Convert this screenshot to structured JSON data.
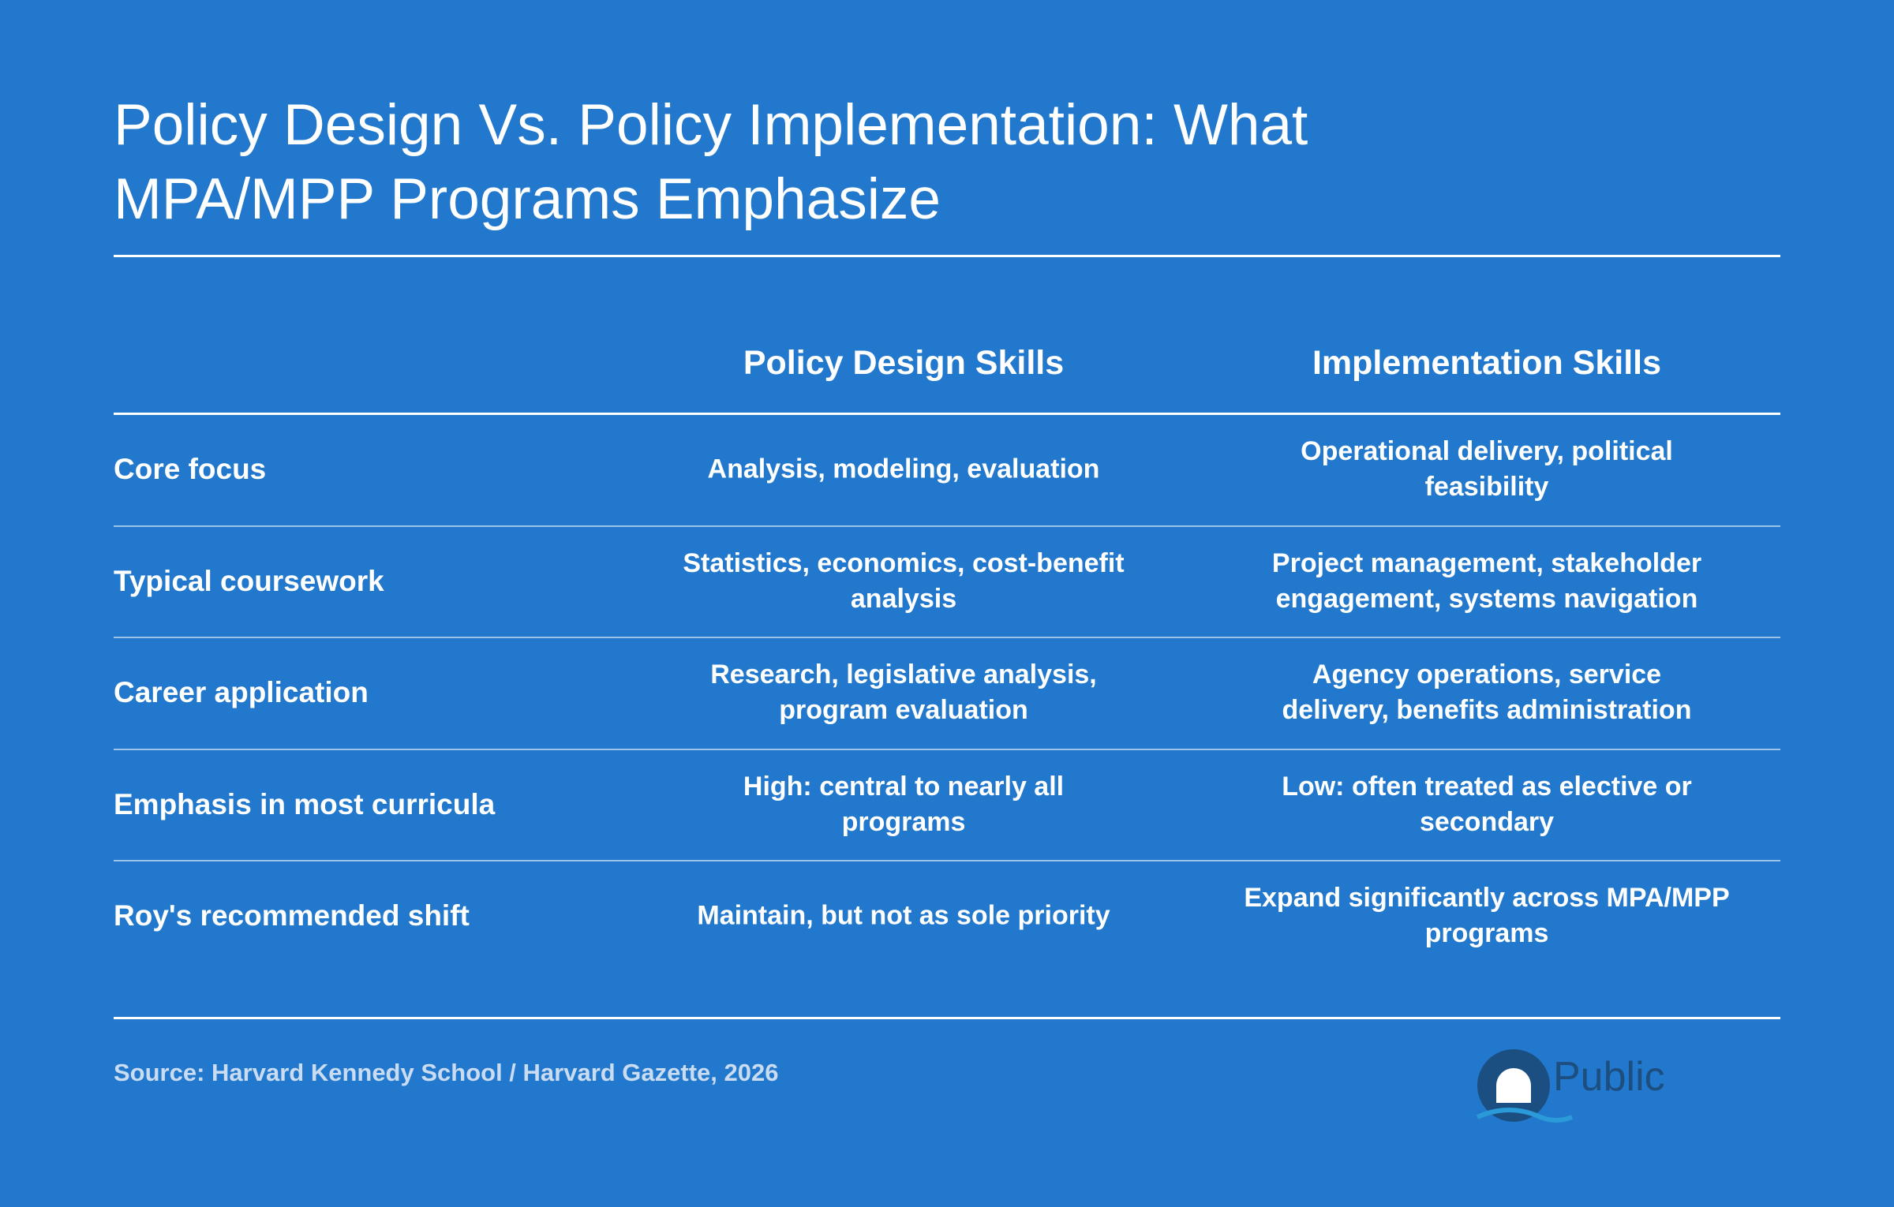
{
  "header": {
    "title": "Policy Design Vs. Policy Implementation: What MPA/MPP Programs Emphasize"
  },
  "table": {
    "columns": [
      "Policy Design Skills",
      "Implementation Skills"
    ],
    "rows": [
      {
        "label": "Core focus",
        "cells": [
          [
            "Analysis, modeling, evaluation"
          ],
          [
            "Operational delivery, political",
            "feasibility"
          ]
        ]
      },
      {
        "label": "Typical coursework",
        "cells": [
          [
            "Statistics, economics, cost-benefit",
            "analysis"
          ],
          [
            "Project management, stakeholder",
            "engagement, systems navigation"
          ]
        ]
      },
      {
        "label": "Career application",
        "cells": [
          [
            "Research, legislative analysis,",
            "program evaluation"
          ],
          [
            "Agency operations, service",
            "delivery, benefits administration"
          ]
        ]
      },
      {
        "label": "Emphasis in most curricula",
        "cells": [
          [
            "High: central to nearly all",
            "programs"
          ],
          [
            "Low: often treated as elective or",
            "secondary"
          ]
        ]
      },
      {
        "label": "Roy's recommended shift",
        "cells": [
          [
            "Maintain, but not as sole priority"
          ],
          [
            "Expand significantly across MPA/MPP",
            "programs"
          ]
        ]
      }
    ]
  },
  "footer": {
    "source": "Source: Harvard Kennedy School / Harvard Gazette, 2026",
    "logo": "Public"
  }
}
